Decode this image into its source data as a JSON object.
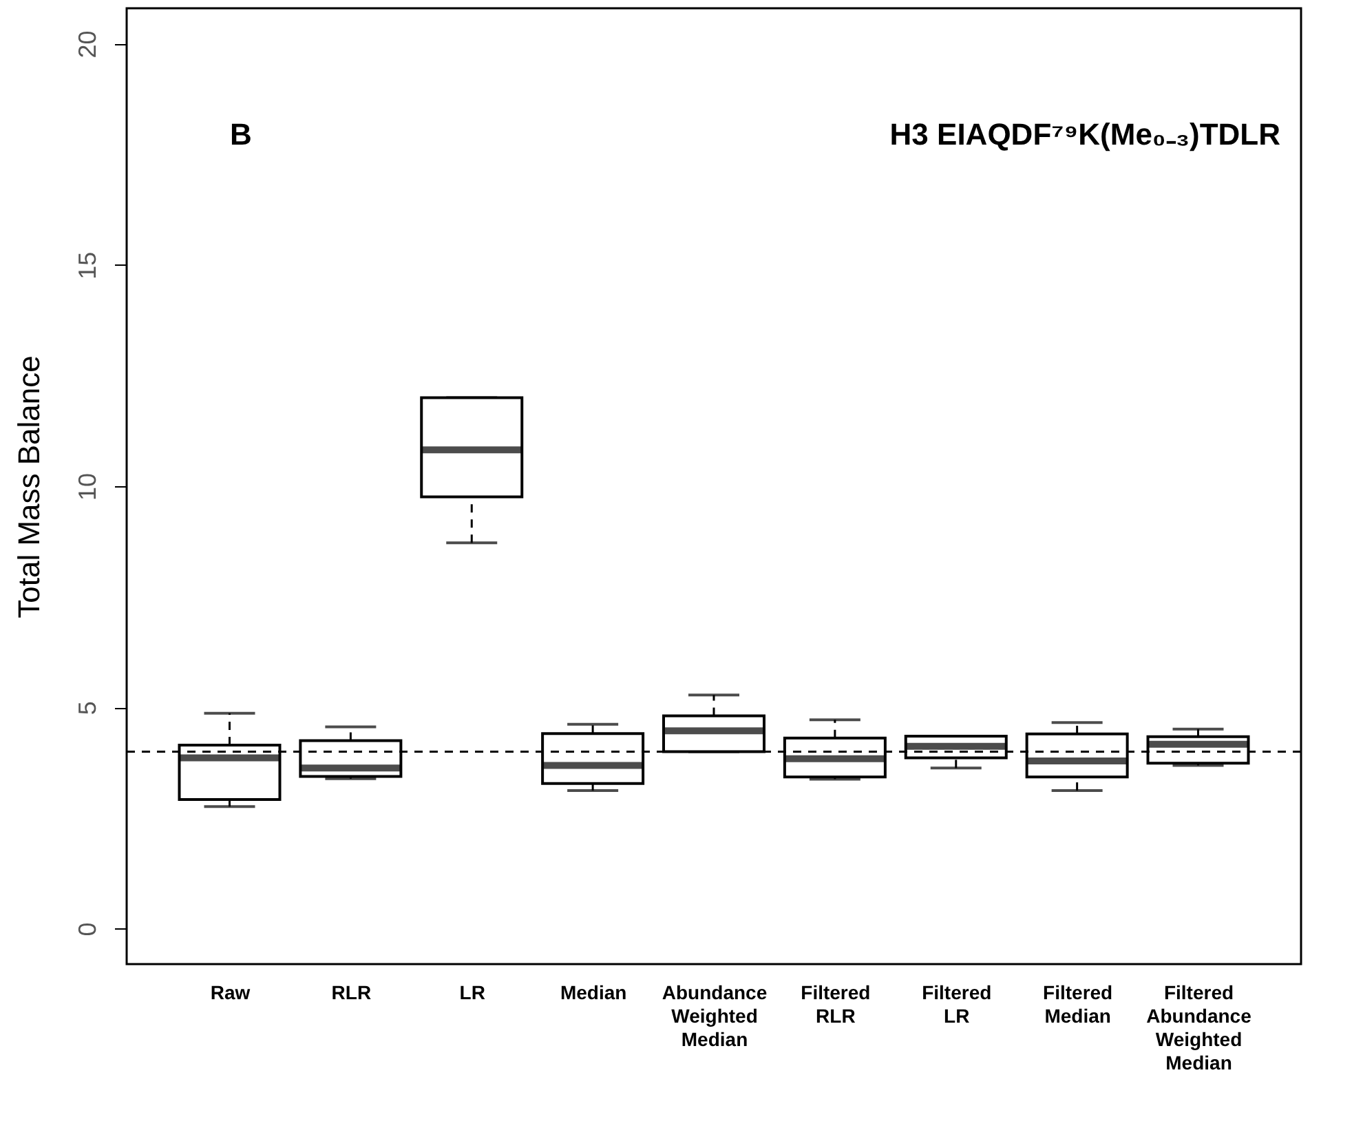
{
  "chart_data": {
    "type": "box",
    "ylabel": "Total Mass Balance",
    "annotations": [
      "B",
      "H3 EIAQDF⁷⁹K(Me₀₋₃)TDLR"
    ],
    "categories": [
      "Raw",
      "RLR",
      "LR",
      "Median",
      "Abundance Weighted Median",
      "Filtered RLR",
      "Filtered LR",
      "Filtered Median",
      "Filtered Abundance Weighted Median"
    ],
    "boxes": [
      {
        "low": 2.76,
        "q1": 2.92,
        "median": 3.86,
        "q3": 4.15,
        "high": 4.87
      },
      {
        "low": 3.39,
        "q1": 3.44,
        "median": 3.63,
        "q3": 4.25,
        "high": 4.56
      },
      {
        "low": 8.72,
        "q1": 9.76,
        "median": 10.82,
        "q3": 12.0,
        "high": 12.0
      },
      {
        "low": 3.12,
        "q1": 3.28,
        "median": 3.69,
        "q3": 4.41,
        "high": 4.62
      },
      {
        "low": 4.0,
        "q1": 4.0,
        "median": 4.47,
        "q3": 4.81,
        "high": 5.28
      },
      {
        "low": 3.38,
        "q1": 3.43,
        "median": 3.84,
        "q3": 4.31,
        "high": 4.72
      },
      {
        "low": 3.63,
        "q1": 3.86,
        "median": 4.12,
        "q3": 4.35,
        "high": 4.35
      },
      {
        "low": 3.12,
        "q1": 3.43,
        "median": 3.79,
        "q3": 4.4,
        "high": 4.66
      },
      {
        "low": 3.69,
        "q1": 3.74,
        "median": 4.17,
        "q3": 4.34,
        "high": 4.51
      }
    ],
    "ylim": [
      -0.8,
      20.8
    ],
    "yticks": [
      0,
      5,
      10,
      15,
      20
    ],
    "grid": false,
    "ref_lines": [
      {
        "axis": "y",
        "value": 4,
        "line_style": "dashed"
      }
    ]
  }
}
